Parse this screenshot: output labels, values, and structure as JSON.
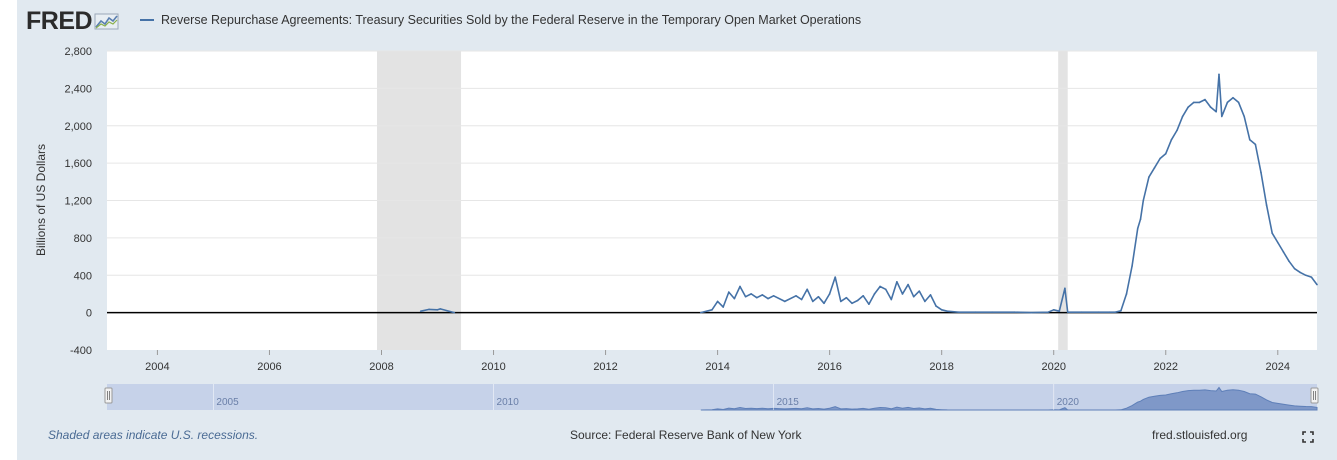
{
  "header": {
    "logo_text": "FRED",
    "logo_icon": "chart-line-icon",
    "series_title": "Reverse Repurchase Agreements: Treasury Securities Sold by the Federal Reserve in the Temporary Open Market Operations"
  },
  "footer": {
    "recession_note": "Shaded areas indicate U.S. recessions.",
    "source": "Source: Federal Reserve Bank of New York",
    "site": "fred.stlouisfed.org",
    "fullscreen_icon": "fullscreen-icon"
  },
  "colors": {
    "series": "#4572a7",
    "recession": "#e3e3e3",
    "background": "#e1e9f0",
    "navigator_fill": "#7f98c8",
    "navigator_band": "#c6d2e9"
  },
  "chart_data": {
    "type": "line",
    "title": "Reverse Repurchase Agreements: Treasury Securities Sold by the Federal Reserve in the Temporary Open Market Operations",
    "xlabel": "",
    "ylabel": "Billions of US Dollars",
    "xlim": [
      2003.1,
      2024.7
    ],
    "ylim": [
      -400,
      2800
    ],
    "yticks": [
      -400,
      0,
      400,
      800,
      1200,
      1600,
      2000,
      2400,
      2800
    ],
    "ytick_labels": [
      "-400",
      "0",
      "400",
      "800",
      "1,200",
      "1,600",
      "2,000",
      "2,400",
      "2,800"
    ],
    "xticks": [
      2004,
      2006,
      2008,
      2010,
      2012,
      2014,
      2016,
      2018,
      2020,
      2022,
      2024
    ],
    "xtick_labels": [
      "2004",
      "2006",
      "2008",
      "2010",
      "2012",
      "2014",
      "2016",
      "2018",
      "2020",
      "2022",
      "2024"
    ],
    "recessions": [
      [
        2007.92,
        2009.42
      ],
      [
        2020.08,
        2020.25
      ]
    ],
    "series": [
      {
        "name": "Reverse Repurchase Agreements",
        "x": [
          2008.7,
          2008.85,
          2009.0,
          2009.05,
          2009.3,
          2013.7,
          2013.9,
          2014.0,
          2014.1,
          2014.2,
          2014.3,
          2014.4,
          2014.5,
          2014.6,
          2014.7,
          2014.8,
          2014.9,
          2015.0,
          2015.2,
          2015.4,
          2015.5,
          2015.6,
          2015.7,
          2015.8,
          2015.9,
          2016.0,
          2016.1,
          2016.2,
          2016.3,
          2016.4,
          2016.5,
          2016.6,
          2016.7,
          2016.8,
          2016.9,
          2017.0,
          2017.1,
          2017.2,
          2017.3,
          2017.4,
          2017.5,
          2017.6,
          2017.7,
          2017.8,
          2017.9,
          2018.0,
          2018.1,
          2018.3,
          2018.6,
          2018.9,
          2019.3,
          2019.6,
          2019.9,
          2020.0,
          2020.1,
          2020.2,
          2020.25,
          2020.5,
          2020.8,
          2021.0,
          2021.1,
          2021.2,
          2021.3,
          2021.4,
          2021.5,
          2021.55,
          2021.6,
          2021.7,
          2021.8,
          2021.9,
          2022.0,
          2022.1,
          2022.2,
          2022.3,
          2022.4,
          2022.5,
          2022.6,
          2022.7,
          2022.8,
          2022.9,
          2022.95,
          2023.0,
          2023.1,
          2023.2,
          2023.3,
          2023.4,
          2023.5,
          2023.6,
          2023.7,
          2023.8,
          2023.9,
          2024.0,
          2024.1,
          2024.2,
          2024.3,
          2024.4,
          2024.5,
          2024.6,
          2024.7
        ],
        "values": [
          15,
          35,
          30,
          40,
          0,
          0,
          30,
          120,
          60,
          220,
          150,
          280,
          170,
          200,
          160,
          190,
          150,
          180,
          120,
          180,
          140,
          250,
          120,
          170,
          100,
          200,
          380,
          120,
          160,
          100,
          130,
          180,
          90,
          200,
          280,
          250,
          140,
          330,
          200,
          300,
          170,
          230,
          120,
          190,
          70,
          30,
          15,
          5,
          5,
          5,
          5,
          0,
          5,
          30,
          15,
          260,
          5,
          5,
          5,
          5,
          5,
          20,
          200,
          500,
          900,
          1000,
          1200,
          1450,
          1550,
          1650,
          1700,
          1850,
          1950,
          2100,
          2200,
          2250,
          2250,
          2280,
          2200,
          2150,
          2550,
          2100,
          2250,
          2300,
          2250,
          2100,
          1850,
          1800,
          1500,
          1150,
          850,
          750,
          650,
          550,
          470,
          430,
          400,
          380,
          300
        ]
      }
    ],
    "navigator": {
      "ticks": [
        2005,
        2010,
        2015,
        2020
      ],
      "tick_labels": [
        "2005",
        "2010",
        "2015",
        "2020"
      ]
    }
  }
}
